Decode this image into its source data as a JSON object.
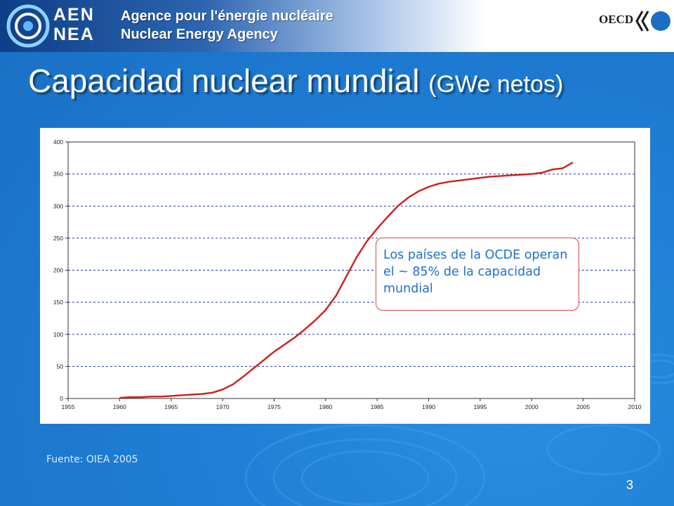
{
  "header": {
    "logo_line1": "AEN",
    "logo_line2": "NEA",
    "agency_fr": "Agence pour l'énergie nucléaire",
    "agency_en": "Nuclear Energy Agency",
    "oecd": "OECD",
    "logo_icon": "nea-emblem-icon",
    "oecd_icon": "oecd-logo-icon"
  },
  "slide": {
    "title_main": "Capacidad nuclear mundial",
    "title_sub": "(GWe netos)",
    "callout": "Los países de la OCDE operan el ~ 85% de la capacidad mundial",
    "source": "Fuente: OIEA 2005",
    "page_number": "3"
  },
  "colors": {
    "background": "#1f7fd6",
    "line": "#cc1f1f",
    "callout_text": "#1f6fd0"
  },
  "chart_data": {
    "type": "line",
    "title": "",
    "xlabel": "",
    "ylabel": "",
    "xlim": [
      1955,
      2010
    ],
    "ylim": [
      0,
      400
    ],
    "xticks": [
      1955,
      1960,
      1965,
      1970,
      1975,
      1980,
      1985,
      1990,
      1995,
      2000,
      2005,
      2010
    ],
    "yticks": [
      0,
      50,
      100,
      150,
      200,
      250,
      300,
      350,
      400
    ],
    "grid": "horizontal-dashed",
    "series": [
      {
        "x": [
          1960,
          1961,
          1962,
          1963,
          1964,
          1965,
          1966,
          1967,
          1968,
          1969,
          1970,
          1971,
          1972,
          1973,
          1974,
          1975,
          1976,
          1977,
          1978,
          1979,
          1980,
          1981,
          1982,
          1983,
          1984,
          1985,
          1986,
          1987,
          1988,
          1989,
          1990,
          1991,
          1992,
          1993,
          1994,
          1995,
          1996,
          1997,
          1998,
          1999,
          2000,
          2001,
          2002,
          2003,
          2004
        ],
        "y": [
          1,
          2,
          2,
          3,
          3,
          4,
          5,
          6,
          7,
          9,
          14,
          22,
          34,
          47,
          60,
          73,
          84,
          95,
          108,
          122,
          138,
          160,
          190,
          220,
          245,
          265,
          283,
          300,
          313,
          323,
          330,
          335,
          338,
          340,
          342,
          344,
          346,
          347,
          348,
          349,
          350,
          352,
          357,
          359,
          368
        ]
      }
    ]
  }
}
